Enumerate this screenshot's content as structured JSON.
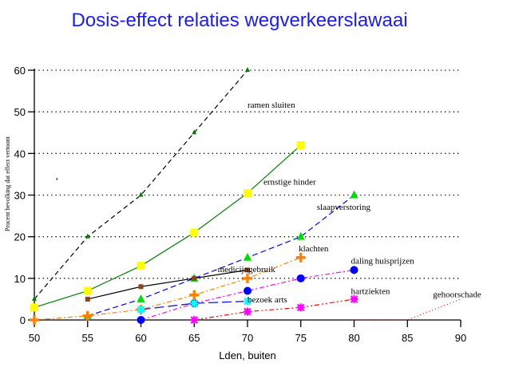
{
  "chart_data": {
    "type": "line",
    "title": "Dosis-effect relaties wegverkeerslawaai",
    "xlabel": "Lden, buiten",
    "ylabel": "Procent bevolking dat effect vertoont",
    "xlim": [
      50,
      90
    ],
    "ylim": [
      0,
      60
    ],
    "xticks": [
      50,
      55,
      60,
      65,
      70,
      75,
      80,
      85,
      90
    ],
    "yticks": [
      0,
      10,
      20,
      30,
      40,
      50,
      60
    ],
    "grid": "horizontal-dotted",
    "legend": "inline-labels",
    "series": [
      {
        "name": "ramen sluiten",
        "line_color": "#000000",
        "dash": "6,4",
        "marker": "triangle",
        "marker_color": "#008000",
        "marker_size": "small",
        "points": [
          [
            50,
            5
          ],
          [
            55,
            20
          ],
          [
            60,
            30
          ],
          [
            65,
            45
          ],
          [
            70,
            60
          ]
        ],
        "label_at": [
          70,
          51
        ]
      },
      {
        "name": "ernstige hinder",
        "line_color": "#008000",
        "dash": "",
        "marker": "square",
        "marker_color": "#ffff00",
        "marker_size": "large",
        "points": [
          [
            50,
            3
          ],
          [
            55,
            7
          ],
          [
            60,
            13
          ],
          [
            65,
            21
          ],
          [
            70,
            30.5
          ],
          [
            75,
            42
          ]
        ],
        "label_at": [
          71.5,
          32.5
        ]
      },
      {
        "name": "slaapverstoring",
        "line_color": "#0000ff",
        "dash": "7,4",
        "marker": "triangle",
        "marker_color": "#00dd00",
        "marker_size": "large",
        "points": [
          [
            55,
            1
          ],
          [
            60,
            5
          ],
          [
            65,
            10
          ],
          [
            70,
            15
          ],
          [
            75,
            20
          ],
          [
            80,
            30
          ]
        ],
        "label_at": [
          76.5,
          26.5
        ]
      },
      {
        "name": "medicijngebruik",
        "line_color": "#000000",
        "dash": "",
        "marker": "square",
        "marker_color": "#8b4513",
        "marker_size": "small",
        "points": [
          [
            55,
            5
          ],
          [
            60,
            8
          ],
          [
            65,
            10
          ],
          [
            70,
            12
          ]
        ],
        "label_at": [
          67.2,
          11.5
        ]
      },
      {
        "name": "klachten",
        "line_color": "#ff8000",
        "dash": "6,3,2,3",
        "marker": "plus",
        "marker_color": "#ff8000",
        "marker_size": "large",
        "points": [
          [
            50,
            0
          ],
          [
            55,
            1
          ],
          [
            60,
            2.5
          ],
          [
            65,
            6
          ],
          [
            70,
            10
          ],
          [
            75,
            15
          ]
        ],
        "label_at": [
          74.8,
          16.5
        ]
      },
      {
        "name": "daling huisprijzen",
        "line_color": "#ff00ff",
        "dash": "6,3,2,3",
        "marker": "circle",
        "marker_color": "#0000ff",
        "marker_size": "large",
        "points": [
          [
            60,
            0
          ],
          [
            65,
            4
          ],
          [
            70,
            7
          ],
          [
            75,
            10
          ],
          [
            80,
            12
          ]
        ],
        "label_at": [
          79.7,
          13.5
        ]
      },
      {
        "name": "bezoek arts",
        "line_color": "#0000ff",
        "dash": "12,5",
        "marker": "star",
        "marker_color": "#00ffff",
        "marker_size": "large",
        "points": [
          [
            60,
            2.5
          ],
          [
            65,
            4
          ],
          [
            70,
            4.5
          ]
        ],
        "label_at": [
          70,
          4.2
        ]
      },
      {
        "name": "hartziekten",
        "line_color": "#ff0000",
        "dash": "6,3,2,3,2,3",
        "marker": "star",
        "marker_color": "#ff00ff",
        "marker_size": "large",
        "points": [
          [
            65,
            0
          ],
          [
            70,
            2
          ],
          [
            75,
            3
          ],
          [
            80,
            5
          ]
        ],
        "label_at": [
          79.7,
          6.2
        ]
      },
      {
        "name": "gehoorschade",
        "line_color": "#ff0000",
        "dash": "1,3",
        "marker": "none",
        "marker_color": "#ff0000",
        "marker_size": "none",
        "points": [
          [
            80,
            0
          ],
          [
            85,
            0
          ],
          [
            90,
            5
          ]
        ],
        "label_at": [
          87.4,
          5.5
        ]
      }
    ]
  }
}
